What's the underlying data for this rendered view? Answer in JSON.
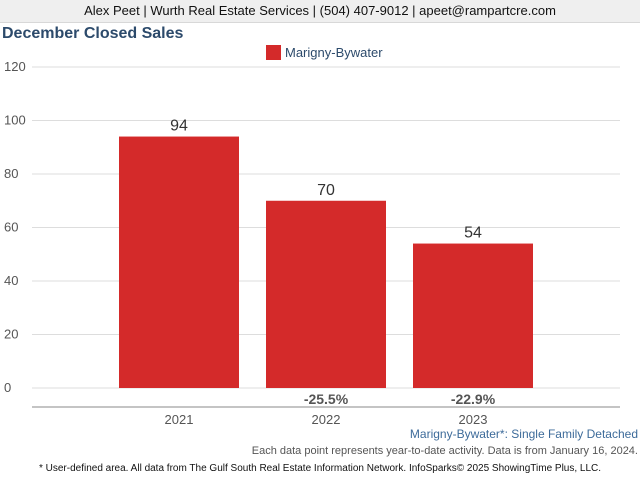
{
  "header": {
    "contact_line": "Alex Peet | Wurth Real Estate Services | (504) 407-9012 | apeet@rampartcre.com"
  },
  "chart_data": {
    "type": "bar",
    "title": "December Closed Sales",
    "categories": [
      "2021",
      "2022",
      "2023"
    ],
    "series": [
      {
        "name": "Marigny-Bywater",
        "values": [
          94,
          70,
          54
        ],
        "color": "#d42a2a"
      }
    ],
    "data_labels": [
      "94",
      "70",
      "54"
    ],
    "change_labels": [
      "",
      "-25.5%",
      "-22.9%"
    ],
    "ylim": [
      0,
      120
    ],
    "yticks": [
      0,
      20,
      40,
      60,
      80,
      100,
      120
    ],
    "xlabel": "",
    "ylabel": "",
    "grid": true,
    "legend_position": "top-center"
  },
  "footer": {
    "series_desc": "Marigny-Bywater*: Single Family Detached",
    "note": "Each data point represents year-to-date activity. Data is from January 16, 2024.",
    "source": "* User-defined area. All data from The Gulf South Real Estate Information Network. InfoSparks© 2025 ShowingTime Plus, LLC."
  }
}
